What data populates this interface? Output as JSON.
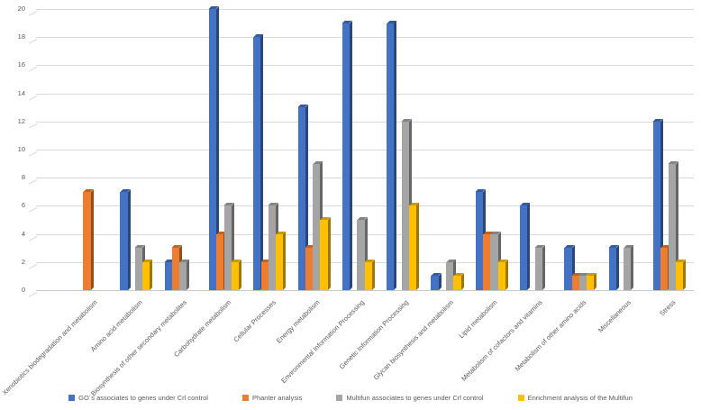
{
  "chart_data": {
    "type": "bar",
    "title": "",
    "xlabel": "",
    "ylabel": "",
    "ylim": [
      0,
      20
    ],
    "ytick_step": 2,
    "yticks": [
      "0",
      "2",
      "4",
      "6",
      "8",
      "10",
      "12",
      "14",
      "16",
      "18",
      "20"
    ],
    "grid": true,
    "legend_position": "bottom",
    "style": "3d-clustered-column",
    "categories": [
      "Xenobiotics biodegradation and metabolism",
      "Amino acid metabolism",
      "Biosynthesis of other secondary metabolites",
      "Carbohydrate metabolism",
      "Cellular Processes",
      "Energy metabolism",
      "Environmental Information Processing",
      "Genetic Information Processing",
      "Glycan biosynthesis and metabolism",
      "Lipid metabolism",
      "Metabolism of cofactors and vitamins",
      "Metabolism of other amino acids",
      "Miscellaneous",
      "Stress"
    ],
    "series": [
      {
        "name": "GO´s associates to genes under Crl control",
        "color": "#4472C4",
        "values": [
          0,
          7,
          2,
          20,
          18,
          13,
          19,
          19,
          1,
          7,
          6,
          3,
          3,
          12
        ]
      },
      {
        "name": "Phanter analysis",
        "color": "#ED7D31",
        "values": [
          7,
          0,
          3,
          4,
          2,
          3,
          0,
          0,
          0,
          4,
          0,
          1,
          0,
          3
        ]
      },
      {
        "name": "Multifun associates to genes under Crl control",
        "color": "#A5A5A5",
        "values": [
          0,
          3,
          2,
          6,
          6,
          9,
          5,
          12,
          2,
          4,
          3,
          1,
          3,
          9
        ]
      },
      {
        "name": "Enrichment analysis of the Multifun",
        "color": "#FFC000",
        "values": [
          0,
          2,
          0,
          2,
          4,
          5,
          2,
          6,
          1,
          2,
          0,
          1,
          0,
          2
        ]
      }
    ],
    "colors": {
      "gridline": "#D9D9D9",
      "axis_text": "#595959"
    }
  }
}
